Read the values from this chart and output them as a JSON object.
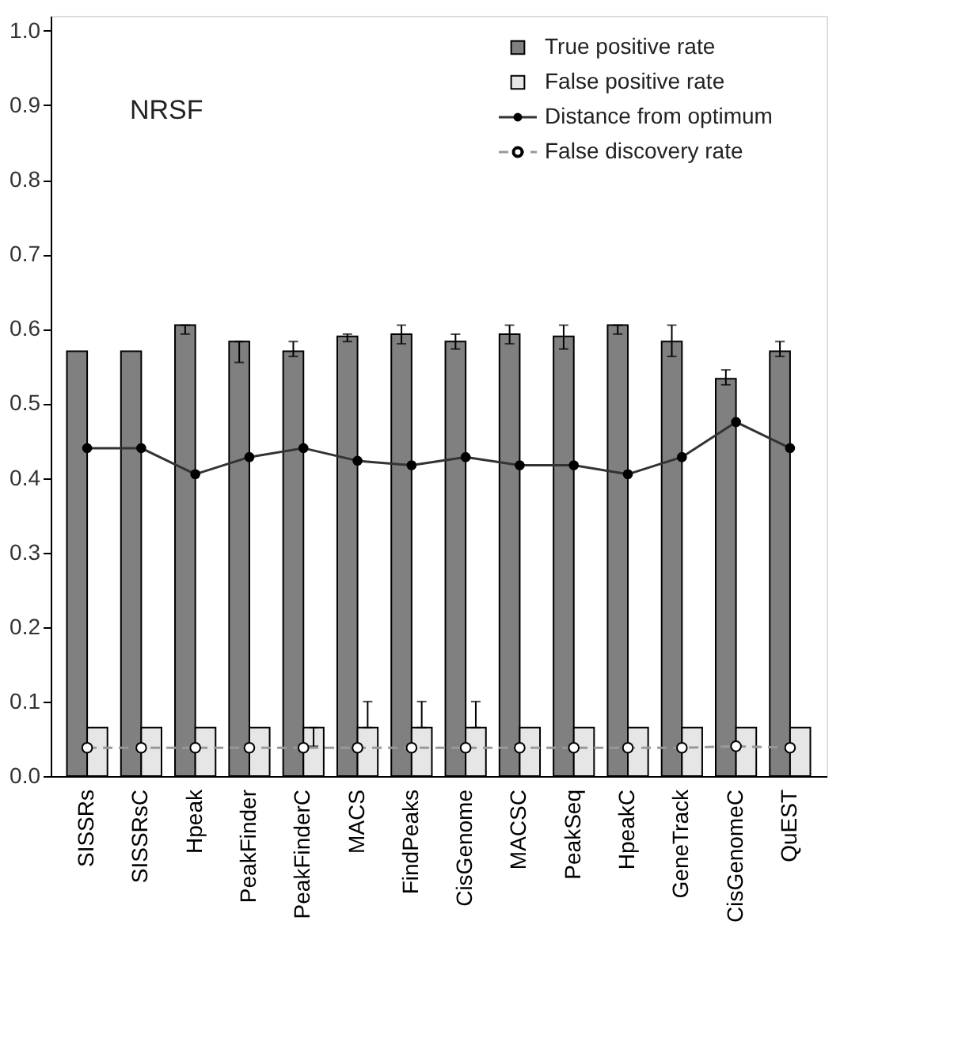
{
  "chart_data": {
    "type": "bar",
    "categories": [
      "SISSRs",
      "SISSRsC",
      "Hpeak",
      "PeakFinder",
      "PeakFinderC",
      "MACS",
      "FindPeaks",
      "CisGenome",
      "MACSC",
      "PeakSeq",
      "HpeakC",
      "GeneTrack",
      "CisGenomeC",
      "QuEST"
    ],
    "annotations": [
      "NRSF"
    ],
    "ylim": [
      0,
      1.02
    ],
    "yticks": [
      {
        "value": 0,
        "label": "0.0"
      },
      0.1,
      0.2,
      0.3,
      0.4,
      0.5,
      0.6,
      0.7,
      0.8,
      0.9,
      {
        "value": 1,
        "label": "1.0"
      }
    ],
    "legend": "top right",
    "grid": false,
    "series": [
      {
        "name": "True positive rate",
        "color": "#808080",
        "values": [
          0.57,
          0.57,
          0.605,
          0.583,
          0.57,
          0.59,
          0.593,
          0.583,
          0.593,
          0.59,
          0.605,
          0.583,
          0.533,
          0.57
        ],
        "errors": [
          null,
          null,
          [
            0.593,
            0.605
          ],
          [
            0.555,
            0.583
          ],
          [
            0.563,
            0.583
          ],
          [
            0.583,
            0.593
          ],
          [
            0.58,
            0.605
          ],
          [
            0.573,
            0.593
          ],
          [
            0.58,
            0.605
          ],
          [
            0.573,
            0.605
          ],
          [
            0.593,
            0.605
          ],
          [
            0.563,
            0.605
          ],
          [
            0.525,
            0.545
          ],
          [
            0.563,
            0.583
          ]
        ]
      },
      {
        "name": "False positive rate",
        "color": "#e6e6e6",
        "values": [
          0.065,
          0.065,
          0.065,
          0.065,
          0.065,
          0.065,
          0.065,
          0.065,
          0.065,
          0.065,
          0.065,
          0.065,
          0.065,
          0.065
        ],
        "errors": [
          null,
          null,
          null,
          null,
          [
            0.04,
            0.065
          ],
          [
            0.065,
            0.1
          ],
          [
            0.065,
            0.1
          ],
          [
            0.065,
            0.1
          ],
          null,
          null,
          null,
          null,
          null,
          null
        ]
      },
      {
        "name": "Distance from optimum",
        "type": "line",
        "color": "#333333",
        "marker": "circle",
        "line_style": "solid",
        "values": [
          0.44,
          0.44,
          0.405,
          0.428,
          0.44,
          0.423,
          0.417,
          0.428,
          0.417,
          0.417,
          0.405,
          0.428,
          0.475,
          0.44
        ]
      },
      {
        "name": "False discovery rate",
        "type": "line",
        "color": "#999999",
        "marker": "circle",
        "line_style": "dashed",
        "values": [
          0.038,
          0.038,
          0.038,
          0.038,
          0.038,
          0.038,
          0.038,
          0.038,
          0.038,
          0.038,
          0.038,
          0.038,
          0.04,
          0.038
        ]
      }
    ]
  }
}
